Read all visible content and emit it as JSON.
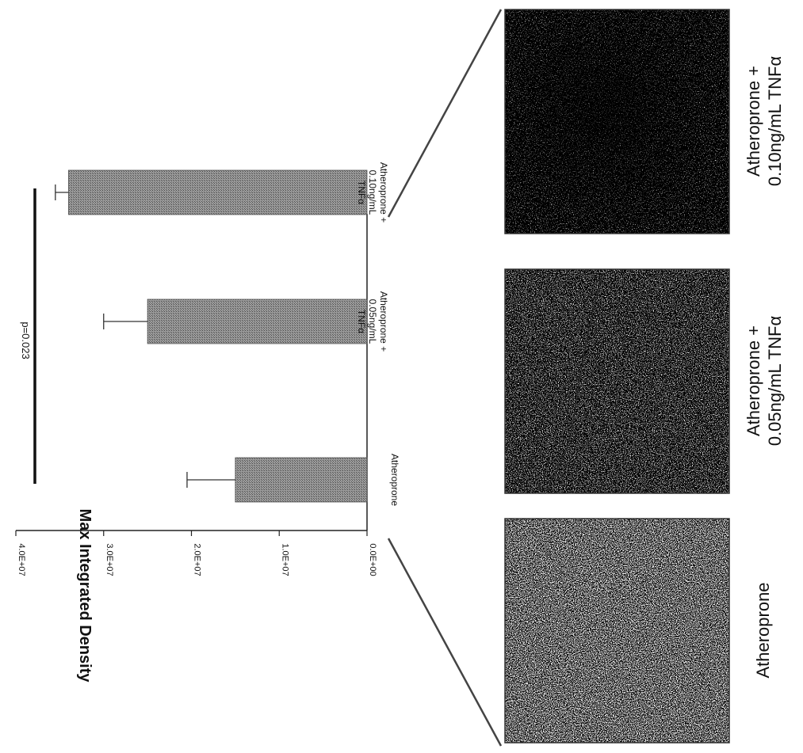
{
  "figure": {
    "panel_labels": [
      {
        "id": "atheroprone",
        "lines": [
          "Atheroprone"
        ]
      },
      {
        "id": "tnf005",
        "lines": [
          "Atheroprone +",
          "0.05ng/mL TNFα"
        ]
      },
      {
        "id": "tnf010",
        "lines": [
          "Atheroprone +",
          "0.10ng/mL TNFα"
        ]
      }
    ]
  },
  "chart_data": {
    "type": "bar",
    "ylabel": "Max Integrated Density",
    "xlabel": "",
    "title": "",
    "ylim": [
      0,
      40000000
    ],
    "yticks": [
      0,
      10000000,
      20000000,
      30000000,
      40000000
    ],
    "ytick_labels": [
      "0.0E+00",
      "1.0E+07",
      "2.0E+07",
      "3.0E+07",
      "4.0E+07"
    ],
    "categories": [
      "Atheroprone",
      "Atheroprone + 0.05ng/mL TNFα",
      "Atheroprone + 0.10ng/mL TNFα"
    ],
    "category_label_lines": [
      [
        "Atheroprone"
      ],
      [
        "Atheroprone +",
        "0.05ng/mL",
        "TNFα"
      ],
      [
        "Atheroprone +",
        "0.10ng/mL",
        "TNFα"
      ]
    ],
    "values": [
      15000000,
      25000000,
      34000000
    ],
    "errors": [
      5500000,
      5000000,
      1500000
    ],
    "annotation": {
      "text": "p=0.023",
      "from": 0,
      "to": 2,
      "y": 39000000
    },
    "colors": {
      "bar": "#7a7a7a",
      "axis": "#222222"
    }
  }
}
